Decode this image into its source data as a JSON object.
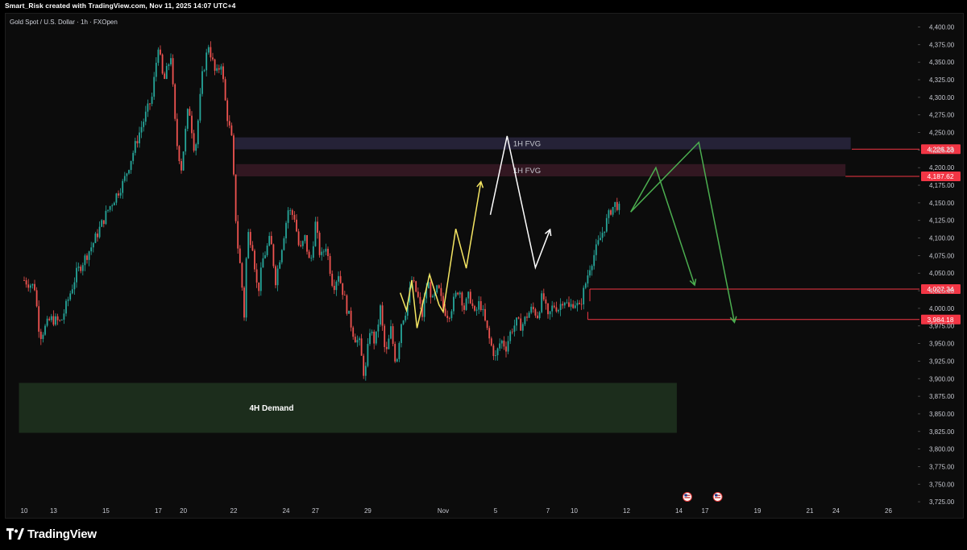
{
  "header": {
    "credit": "Smart_Risk created with TradingView.com, Nov 11, 2025 14:07 UTC+4"
  },
  "symbol": {
    "title": "Gold Spot / U.S. Dollar · 1h · FXOpen"
  },
  "footer": {
    "brand": "TradingView",
    "logo_icon": "tradingview-logo-icon"
  },
  "colors": {
    "up": "#26a69a",
    "down": "#ef5350",
    "fvg1": "#2a2740",
    "fvg2": "#3a1a26",
    "demand": "#1d2f1e",
    "priceline": "#f23645",
    "yellow": "#f5e663",
    "white": "#ffffff",
    "green": "#4caf50"
  },
  "chart_data": {
    "type": "candlestick",
    "y_axis": {
      "range": [
        3712,
        4412
      ],
      "ticks": [
        4400,
        4375,
        4350,
        4325,
        4300,
        4275,
        4250,
        4225,
        4200,
        4175,
        4150,
        4125,
        4100,
        4075,
        4050,
        4025,
        4000,
        3975,
        3950,
        3925,
        3900,
        3875,
        3850,
        3825,
        3800,
        3775,
        3750,
        3725
      ],
      "tick_labels": [
        "4,400.00",
        "4,375.00",
        "4,350.00",
        "4,325.00",
        "4,300.00",
        "4,275.00",
        "4,250.00",
        "4,225.00",
        "4,200.00",
        "4,175.00",
        "4,150.00",
        "4,125.00",
        "4,100.00",
        "4,075.00",
        "4,050.00",
        "4,025.00",
        "4,000.00",
        "3,975.00",
        "3,950.00",
        "3,925.00",
        "3,900.00",
        "3,875.00",
        "3,850.00",
        "3,825.00",
        "3,800.00",
        "3,775.00",
        "3,750.00",
        "3,725.00"
      ]
    },
    "x_axis": {
      "labels": [
        "10",
        "13",
        "15",
        "17",
        "20",
        "22",
        "24",
        "27",
        "29",
        "Nov",
        "5",
        "7",
        "10",
        "12",
        "14",
        "17",
        "19",
        "21",
        "24",
        "26"
      ],
      "label_index": [
        0,
        2.8,
        7.8,
        12.8,
        15.2,
        20,
        25,
        27.8,
        32.8,
        40,
        45,
        50,
        52.5,
        57.5,
        62.5,
        65,
        70,
        75,
        77.5,
        82.5
      ]
    },
    "price_path": [
      [
        0,
        4040
      ],
      [
        1,
        4030
      ],
      [
        1.5,
        3960
      ],
      [
        2.5,
        3985
      ],
      [
        3.5,
        3980
      ],
      [
        5,
        4050
      ],
      [
        6.5,
        4090
      ],
      [
        8,
        4140
      ],
      [
        9.5,
        4180
      ],
      [
        11,
        4250
      ],
      [
        12.2,
        4300
      ],
      [
        12.8,
        4375
      ],
      [
        13.3,
        4320
      ],
      [
        14,
        4360
      ],
      [
        14.5,
        4240
      ],
      [
        15,
        4200
      ],
      [
        15.7,
        4290
      ],
      [
        16.3,
        4220
      ],
      [
        17,
        4330
      ],
      [
        17.6,
        4375
      ],
      [
        18.3,
        4330
      ],
      [
        18.8,
        4350
      ],
      [
        19.3,
        4280
      ],
      [
        19.8,
        4240
      ],
      [
        20.3,
        4100
      ],
      [
        20.7,
        4050
      ],
      [
        21,
        3990
      ],
      [
        21.3,
        4110
      ],
      [
        21.8,
        4090
      ],
      [
        22.3,
        4020
      ],
      [
        22.8,
        4070
      ],
      [
        23.5,
        4100
      ],
      [
        24,
        4040
      ],
      [
        24.5,
        4080
      ],
      [
        25.2,
        4140
      ],
      [
        25.8,
        4130
      ],
      [
        26.3,
        4080
      ],
      [
        26.8,
        4100
      ],
      [
        27.3,
        4060
      ],
      [
        27.8,
        4120
      ],
      [
        28.3,
        4070
      ],
      [
        28.8,
        4090
      ],
      [
        29.5,
        4030
      ],
      [
        30,
        4050
      ],
      [
        30.8,
        4000
      ],
      [
        31.5,
        3960
      ],
      [
        32,
        3950
      ],
      [
        32.5,
        3900
      ],
      [
        33,
        3970
      ],
      [
        33.5,
        3950
      ],
      [
        34,
        4000
      ],
      [
        34.5,
        3930
      ],
      [
        35,
        3970
      ],
      [
        35.5,
        3920
      ],
      [
        36,
        3980
      ],
      [
        36.5,
        4000
      ],
      [
        37,
        4040
      ],
      [
        37.5,
        4020
      ],
      [
        38,
        3990
      ],
      [
        38.5,
        4040
      ],
      [
        39,
        4010
      ],
      [
        39.5,
        4030
      ],
      [
        40,
        4000
      ],
      [
        40.5,
        3990
      ],
      [
        41,
        4010
      ],
      [
        41.5,
        4030
      ],
      [
        42,
        4000
      ],
      [
        42.5,
        4020
      ],
      [
        43,
        3990
      ],
      [
        43.5,
        4010
      ],
      [
        44,
        3980
      ],
      [
        44.5,
        3950
      ],
      [
        45,
        3930
      ],
      [
        45.5,
        3955
      ],
      [
        46,
        3945
      ],
      [
        46.5,
        3970
      ],
      [
        47,
        3980
      ],
      [
        47.5,
        3975
      ],
      [
        48,
        3990
      ],
      [
        48.5,
        4000
      ],
      [
        49,
        3990
      ],
      [
        49.5,
        4020
      ],
      [
        50,
        3985
      ],
      [
        50.5,
        4005
      ],
      [
        51,
        4000
      ],
      [
        51.5,
        4015
      ],
      [
        52,
        4000
      ],
      [
        52.5,
        4010
      ],
      [
        53,
        4000
      ],
      [
        53.5,
        4030
      ],
      [
        54,
        4060
      ],
      [
        54.5,
        4080
      ],
      [
        55,
        4100
      ],
      [
        55.5,
        4120
      ],
      [
        56,
        4140
      ],
      [
        56.5,
        4150
      ],
      [
        57,
        4135
      ]
    ],
    "zones": [
      {
        "label": "1H FVG",
        "low": 4226,
        "high": 4243,
        "x_start": 20.1,
        "x_end": 78.9
      },
      {
        "label": "1H FVG",
        "low": 4187.62,
        "high": 4205,
        "x_start": 20.2,
        "x_end": 78.4
      },
      {
        "label": "4H Demand",
        "low": 3823,
        "high": 3894,
        "x_start": -0.5,
        "x_end": 62.3
      }
    ],
    "price_levels": [
      {
        "label": "4,226.23",
        "value": 4226.23,
        "x_start": 79.0
      },
      {
        "label": "4,187.62",
        "value": 4187.62,
        "x_start": 78.4
      },
      {
        "label": "4,027.34",
        "value": 4027.34,
        "x_start": 54.0
      },
      {
        "label": "3,984.18",
        "value": 3984.18,
        "x_start": 53.8
      }
    ],
    "projections": [
      {
        "color": "yellow",
        "points": [
          [
            35.9,
            4022
          ],
          [
            36.5,
            3997
          ],
          [
            37,
            4040
          ],
          [
            37.5,
            3972
          ],
          [
            38.7,
            4048
          ],
          [
            39.6,
            4005
          ],
          [
            40,
            3995
          ],
          [
            41.2,
            4113
          ],
          [
            42.2,
            4057
          ],
          [
            43.6,
            4180
          ]
        ]
      },
      {
        "color": "white",
        "points": [
          [
            44.5,
            4133
          ],
          [
            46.1,
            4245
          ],
          [
            48.8,
            4058
          ],
          [
            50.2,
            4112
          ]
        ]
      },
      {
        "color": "green",
        "points": [
          [
            57.9,
            4137
          ],
          [
            60.3,
            4200
          ],
          [
            64.0,
            4033
          ]
        ]
      },
      {
        "color": "green",
        "points": [
          [
            57.9,
            4137
          ],
          [
            64.4,
            4236
          ],
          [
            67.8,
            3980
          ]
        ]
      }
    ],
    "markers": [
      {
        "icon": "us-flag-event-icon",
        "x": 63.3
      },
      {
        "icon": "us-flag-event-icon",
        "x": 66.2
      }
    ]
  }
}
